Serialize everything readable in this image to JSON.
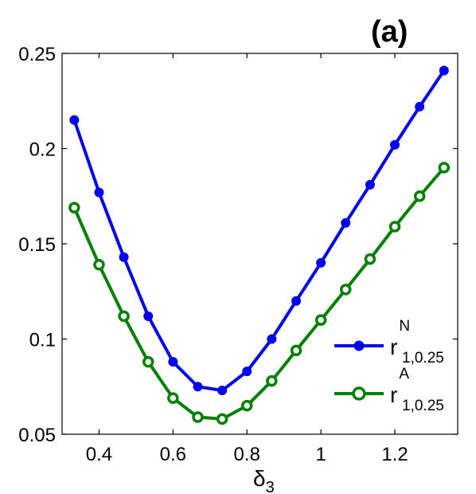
{
  "chart_data": {
    "type": "line",
    "panel_label": "(a)",
    "xlabel": "δ3",
    "xlabel_main": "δ",
    "xlabel_sub": "3",
    "ylabel": "",
    "xlim": [
      0.3,
      1.37
    ],
    "ylim": [
      0.05,
      0.25
    ],
    "x_ticks": [
      0.4,
      0.6,
      0.8,
      1.0,
      1.2
    ],
    "x_tick_labels": [
      "0.4",
      "0.6",
      "0.8",
      "1",
      "1.2"
    ],
    "y_ticks": [
      0.05,
      0.1,
      0.15,
      0.2,
      0.25
    ],
    "y_tick_labels": [
      "0.05",
      "0.1",
      "0.15",
      "0.2",
      "0.25"
    ],
    "grid": false,
    "legend_position": "lower-right",
    "x": [
      0.333,
      0.4,
      0.467,
      0.533,
      0.6,
      0.667,
      0.733,
      0.8,
      0.867,
      0.933,
      1.0,
      1.067,
      1.133,
      1.2,
      1.267,
      1.333
    ],
    "series": [
      {
        "name": "r^N_{1,0.25}",
        "legend_main": "r",
        "legend_sup": "N",
        "legend_sub": "1,0.25",
        "color": "#0000ee",
        "marker": "filled-circle",
        "values": [
          0.215,
          0.177,
          0.143,
          0.112,
          0.088,
          0.075,
          0.073,
          0.083,
          0.1,
          0.12,
          0.14,
          0.161,
          0.181,
          0.202,
          0.222,
          0.241
        ]
      },
      {
        "name": "r^A_{1,0.25}",
        "legend_main": "r",
        "legend_sup": "A",
        "legend_sub": "1,0.25",
        "color": "#007f00",
        "marker": "open-circle",
        "values": [
          0.169,
          0.139,
          0.112,
          0.088,
          0.069,
          0.059,
          0.058,
          0.065,
          0.078,
          0.094,
          0.11,
          0.126,
          0.142,
          0.159,
          0.175,
          0.19
        ]
      }
    ]
  }
}
